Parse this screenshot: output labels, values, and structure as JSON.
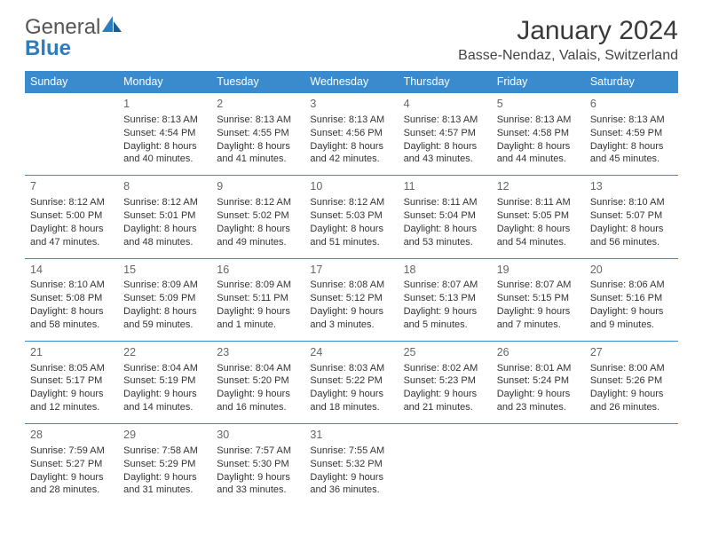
{
  "logo": {
    "text1": "General",
    "text2": "Blue"
  },
  "title": "January 2024",
  "location": "Basse-Nendaz, Valais, Switzerland",
  "colors": {
    "header_bg": "#3a8bce",
    "header_text": "#ffffff",
    "body_text": "#333333",
    "daynum": "#666666",
    "row_border": "#3a8bce",
    "logo_grey": "#555555",
    "logo_blue": "#2e7cc0"
  },
  "weekdays": [
    "Sunday",
    "Monday",
    "Tuesday",
    "Wednesday",
    "Thursday",
    "Friday",
    "Saturday"
  ],
  "weeks": [
    [
      null,
      {
        "n": "1",
        "sr": "Sunrise: 8:13 AM",
        "ss": "Sunset: 4:54 PM",
        "dl": "Daylight: 8 hours and 40 minutes."
      },
      {
        "n": "2",
        "sr": "Sunrise: 8:13 AM",
        "ss": "Sunset: 4:55 PM",
        "dl": "Daylight: 8 hours and 41 minutes."
      },
      {
        "n": "3",
        "sr": "Sunrise: 8:13 AM",
        "ss": "Sunset: 4:56 PM",
        "dl": "Daylight: 8 hours and 42 minutes."
      },
      {
        "n": "4",
        "sr": "Sunrise: 8:13 AM",
        "ss": "Sunset: 4:57 PM",
        "dl": "Daylight: 8 hours and 43 minutes."
      },
      {
        "n": "5",
        "sr": "Sunrise: 8:13 AM",
        "ss": "Sunset: 4:58 PM",
        "dl": "Daylight: 8 hours and 44 minutes."
      },
      {
        "n": "6",
        "sr": "Sunrise: 8:13 AM",
        "ss": "Sunset: 4:59 PM",
        "dl": "Daylight: 8 hours and 45 minutes."
      }
    ],
    [
      {
        "n": "7",
        "sr": "Sunrise: 8:12 AM",
        "ss": "Sunset: 5:00 PM",
        "dl": "Daylight: 8 hours and 47 minutes."
      },
      {
        "n": "8",
        "sr": "Sunrise: 8:12 AM",
        "ss": "Sunset: 5:01 PM",
        "dl": "Daylight: 8 hours and 48 minutes."
      },
      {
        "n": "9",
        "sr": "Sunrise: 8:12 AM",
        "ss": "Sunset: 5:02 PM",
        "dl": "Daylight: 8 hours and 49 minutes."
      },
      {
        "n": "10",
        "sr": "Sunrise: 8:12 AM",
        "ss": "Sunset: 5:03 PM",
        "dl": "Daylight: 8 hours and 51 minutes."
      },
      {
        "n": "11",
        "sr": "Sunrise: 8:11 AM",
        "ss": "Sunset: 5:04 PM",
        "dl": "Daylight: 8 hours and 53 minutes."
      },
      {
        "n": "12",
        "sr": "Sunrise: 8:11 AM",
        "ss": "Sunset: 5:05 PM",
        "dl": "Daylight: 8 hours and 54 minutes."
      },
      {
        "n": "13",
        "sr": "Sunrise: 8:10 AM",
        "ss": "Sunset: 5:07 PM",
        "dl": "Daylight: 8 hours and 56 minutes."
      }
    ],
    [
      {
        "n": "14",
        "sr": "Sunrise: 8:10 AM",
        "ss": "Sunset: 5:08 PM",
        "dl": "Daylight: 8 hours and 58 minutes."
      },
      {
        "n": "15",
        "sr": "Sunrise: 8:09 AM",
        "ss": "Sunset: 5:09 PM",
        "dl": "Daylight: 8 hours and 59 minutes."
      },
      {
        "n": "16",
        "sr": "Sunrise: 8:09 AM",
        "ss": "Sunset: 5:11 PM",
        "dl": "Daylight: 9 hours and 1 minute."
      },
      {
        "n": "17",
        "sr": "Sunrise: 8:08 AM",
        "ss": "Sunset: 5:12 PM",
        "dl": "Daylight: 9 hours and 3 minutes."
      },
      {
        "n": "18",
        "sr": "Sunrise: 8:07 AM",
        "ss": "Sunset: 5:13 PM",
        "dl": "Daylight: 9 hours and 5 minutes."
      },
      {
        "n": "19",
        "sr": "Sunrise: 8:07 AM",
        "ss": "Sunset: 5:15 PM",
        "dl": "Daylight: 9 hours and 7 minutes."
      },
      {
        "n": "20",
        "sr": "Sunrise: 8:06 AM",
        "ss": "Sunset: 5:16 PM",
        "dl": "Daylight: 9 hours and 9 minutes."
      }
    ],
    [
      {
        "n": "21",
        "sr": "Sunrise: 8:05 AM",
        "ss": "Sunset: 5:17 PM",
        "dl": "Daylight: 9 hours and 12 minutes."
      },
      {
        "n": "22",
        "sr": "Sunrise: 8:04 AM",
        "ss": "Sunset: 5:19 PM",
        "dl": "Daylight: 9 hours and 14 minutes."
      },
      {
        "n": "23",
        "sr": "Sunrise: 8:04 AM",
        "ss": "Sunset: 5:20 PM",
        "dl": "Daylight: 9 hours and 16 minutes."
      },
      {
        "n": "24",
        "sr": "Sunrise: 8:03 AM",
        "ss": "Sunset: 5:22 PM",
        "dl": "Daylight: 9 hours and 18 minutes."
      },
      {
        "n": "25",
        "sr": "Sunrise: 8:02 AM",
        "ss": "Sunset: 5:23 PM",
        "dl": "Daylight: 9 hours and 21 minutes."
      },
      {
        "n": "26",
        "sr": "Sunrise: 8:01 AM",
        "ss": "Sunset: 5:24 PM",
        "dl": "Daylight: 9 hours and 23 minutes."
      },
      {
        "n": "27",
        "sr": "Sunrise: 8:00 AM",
        "ss": "Sunset: 5:26 PM",
        "dl": "Daylight: 9 hours and 26 minutes."
      }
    ],
    [
      {
        "n": "28",
        "sr": "Sunrise: 7:59 AM",
        "ss": "Sunset: 5:27 PM",
        "dl": "Daylight: 9 hours and 28 minutes."
      },
      {
        "n": "29",
        "sr": "Sunrise: 7:58 AM",
        "ss": "Sunset: 5:29 PM",
        "dl": "Daylight: 9 hours and 31 minutes."
      },
      {
        "n": "30",
        "sr": "Sunrise: 7:57 AM",
        "ss": "Sunset: 5:30 PM",
        "dl": "Daylight: 9 hours and 33 minutes."
      },
      {
        "n": "31",
        "sr": "Sunrise: 7:55 AM",
        "ss": "Sunset: 5:32 PM",
        "dl": "Daylight: 9 hours and 36 minutes."
      },
      null,
      null,
      null
    ]
  ]
}
